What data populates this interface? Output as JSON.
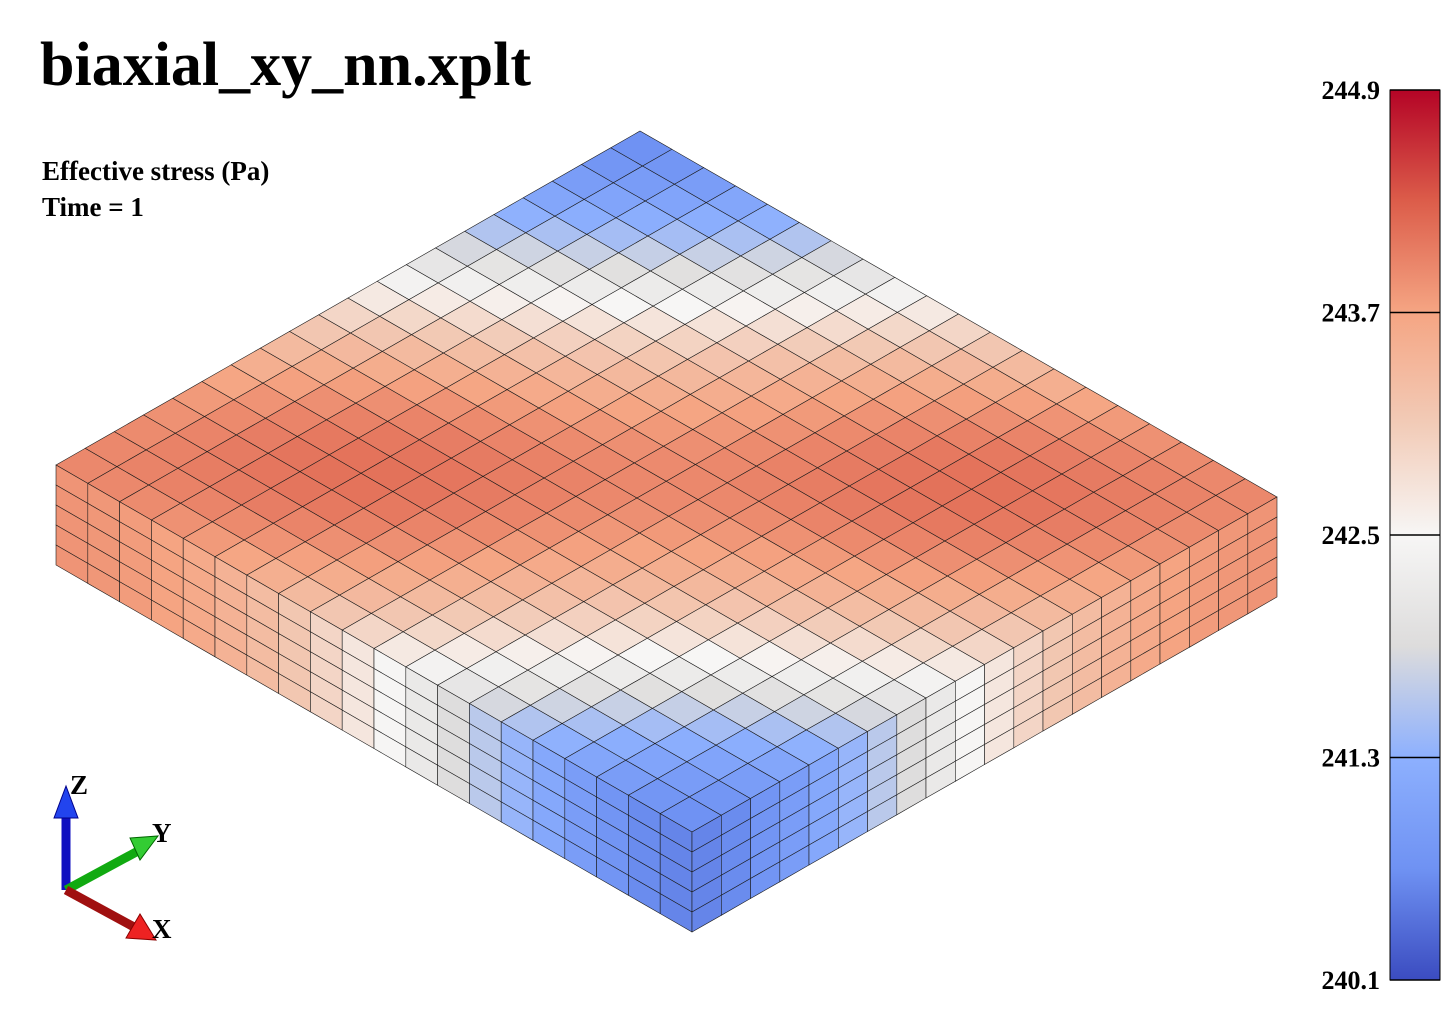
{
  "title": "biaxial_xy_nn.xplt",
  "field_label": "Effective stress (Pa)",
  "time_label": "Time = 1",
  "colorbar": {
    "min": 240.1,
    "max": 244.9,
    "ticks": [
      "244.9",
      "243.7",
      "242.5",
      "241.3",
      "240.1"
    ],
    "stops": [
      "#3b4cc0",
      "#6f92f3",
      "#8db0fe",
      "#dddcdc",
      "#f7f6f5",
      "#f2cbb7",
      "#f5a583",
      "#dc5d4a",
      "#b40426"
    ]
  },
  "axes": {
    "x_label": "X",
    "y_label": "Y",
    "z_label": "Z",
    "x_color": "#cc1111",
    "y_color": "#11aa11",
    "z_color": "#1111cc"
  },
  "mesh": {
    "nx": 20,
    "ny": 20,
    "nz": 5
  }
}
